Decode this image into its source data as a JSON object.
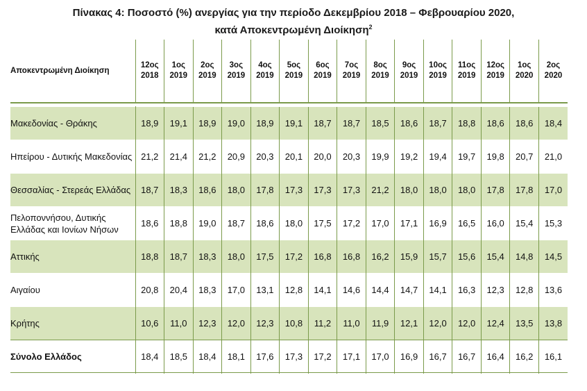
{
  "title": {
    "line1": "Πίνακας 4: Ποσοστό (%) ανεργίας για την περίοδο Δεκεμβρίου 2018 – Φεβρουαρίου 2020,",
    "line2": "κατά Αποκεντρωμένη Διοίκηση",
    "footnote_mark": "2"
  },
  "table": {
    "region_header": "Αποκεντρωμένη Διοίκηση",
    "periods": [
      {
        "month": "12ος",
        "year": "2018"
      },
      {
        "month": "1ος",
        "year": "2019"
      },
      {
        "month": "2ος",
        "year": "2019"
      },
      {
        "month": "3ος",
        "year": "2019"
      },
      {
        "month": "4ος",
        "year": "2019"
      },
      {
        "month": "5ος",
        "year": "2019"
      },
      {
        "month": "6ος",
        "year": "2019"
      },
      {
        "month": "7ος",
        "year": "2019"
      },
      {
        "month": "8ος",
        "year": "2019"
      },
      {
        "month": "9ος",
        "year": "2019"
      },
      {
        "month": "10ος",
        "year": "2019"
      },
      {
        "month": "11ος",
        "year": "2019"
      },
      {
        "month": "12ος",
        "year": "2019"
      },
      {
        "month": "1ος",
        "year": "2020"
      },
      {
        "month": "2ος",
        "year": "2020"
      }
    ],
    "rows": [
      {
        "region": "Μακεδονίας - Θράκης",
        "shaded": true,
        "values": [
          "18,9",
          "19,1",
          "18,9",
          "19,0",
          "18,9",
          "19,1",
          "18,7",
          "18,7",
          "18,5",
          "18,6",
          "18,7",
          "18,8",
          "18,6",
          "18,6",
          "18,4"
        ]
      },
      {
        "region": "Ηπείρου - Δυτικής Μακεδονίας",
        "shaded": false,
        "values": [
          "21,2",
          "21,4",
          "21,2",
          "20,9",
          "20,3",
          "20,1",
          "20,0",
          "20,3",
          "19,9",
          "19,2",
          "19,4",
          "19,7",
          "19,8",
          "20,7",
          "21,0"
        ]
      },
      {
        "region": "Θεσσαλίας - Στερεάς Ελλάδας",
        "shaded": true,
        "values": [
          "18,7",
          "18,3",
          "18,6",
          "18,0",
          "17,8",
          "17,3",
          "17,3",
          "17,3",
          "21,2",
          "18,0",
          "18,0",
          "18,0",
          "17,8",
          "17,8",
          "17,0"
        ]
      },
      {
        "region": "Πελοποννήσου, Δυτικής Ελλάδας και Ιονίων Νήσων",
        "shaded": false,
        "values": [
          "18,6",
          "18,8",
          "19,0",
          "18,7",
          "18,6",
          "18,0",
          "17,5",
          "17,2",
          "17,0",
          "17,1",
          "16,9",
          "16,5",
          "16,0",
          "15,4",
          "15,3"
        ]
      },
      {
        "region": "Αττικής",
        "shaded": true,
        "values": [
          "18,8",
          "18,7",
          "18,3",
          "18,0",
          "17,5",
          "17,2",
          "16,8",
          "16,8",
          "16,2",
          "15,9",
          "15,7",
          "15,6",
          "15,4",
          "14,8",
          "14,5"
        ]
      },
      {
        "region": "Αιγαίου",
        "shaded": false,
        "values": [
          "20,8",
          "20,4",
          "18,3",
          "17,0",
          "13,1",
          "12,8",
          "14,1",
          "14,6",
          "14,4",
          "14,7",
          "14,1",
          "16,3",
          "12,3",
          "12,8",
          "13,6"
        ]
      },
      {
        "region": "Κρήτης",
        "shaded": true,
        "values": [
          "10,6",
          "11,0",
          "12,3",
          "12,0",
          "12,3",
          "10,8",
          "11,2",
          "11,0",
          "11,9",
          "12,1",
          "12,0",
          "12,0",
          "12,4",
          "13,5",
          "13,8"
        ]
      },
      {
        "region": "Σύνολο Ελλάδος",
        "shaded": false,
        "total": true,
        "values": [
          "18,4",
          "18,5",
          "18,4",
          "18,1",
          "17,6",
          "17,3",
          "17,2",
          "17,1",
          "17,0",
          "16,9",
          "16,7",
          "16,7",
          "16,4",
          "16,2",
          "16,1"
        ]
      }
    ]
  },
  "colors": {
    "row_shade": "#d8e4bc",
    "rule": "#7a9a4a"
  }
}
